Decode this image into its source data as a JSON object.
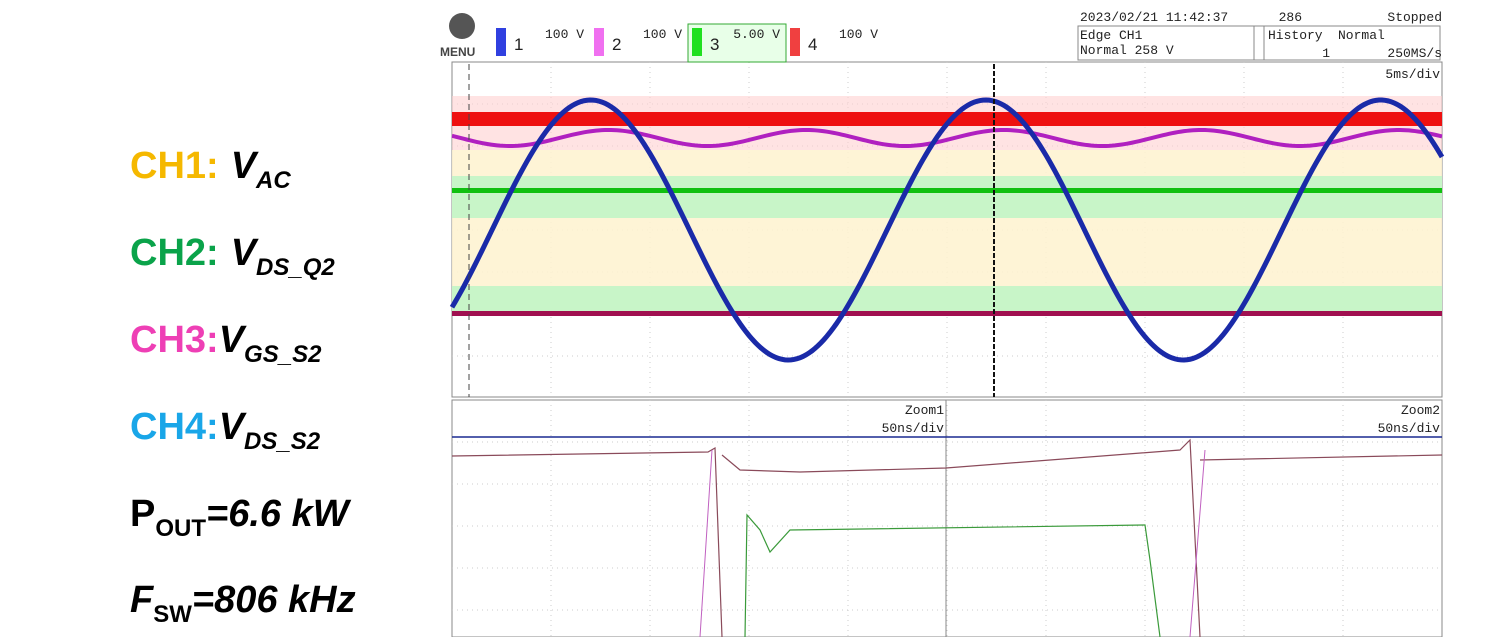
{
  "legend": {
    "items": [
      {
        "channel": "CH1:",
        "symbol": "V",
        "subscript": "AC",
        "color": "#f5b800"
      },
      {
        "channel": "CH2:",
        "symbol": "V",
        "subscript": "DS_Q2",
        "color": "#0aa34a"
      },
      {
        "channel": "CH3:",
        "symbol": "V",
        "subscript": "GS_S2",
        "color": "#ee3fb5"
      },
      {
        "channel": "CH4:",
        "symbol": "V",
        "subscript": "DS_S2",
        "color": "#19a6e8"
      }
    ],
    "power": {
      "symbol": "P",
      "subscript": "OUT",
      "value": "=6.6 kW"
    },
    "frequency": {
      "symbol": "F",
      "subscript": "SW",
      "value": "=806 kHz"
    }
  },
  "scope": {
    "menu": "MENU",
    "channels": [
      {
        "number": "1",
        "scale": "100 V",
        "color": "#3040e0"
      },
      {
        "number": "2",
        "scale": "100 V",
        "color": "#f070f0"
      },
      {
        "number": "3",
        "scale": "5.00 V",
        "color": "#20e020"
      },
      {
        "number": "4",
        "scale": "100 V",
        "color": "#f04040"
      }
    ],
    "timestamp": "2023/02/21 11:42:37",
    "count": "286",
    "status": "Stopped",
    "trigger": {
      "mode": "Edge CH1",
      "level": "Normal 258 V"
    },
    "history": {
      "label": "History",
      "value": "1"
    },
    "acquisition": {
      "mode": "Normal",
      "rate": "250MS/s"
    },
    "timebase": "5ms/div",
    "zooms": [
      {
        "name": "Zoom1",
        "timebase": "50ns/div"
      },
      {
        "name": "Zoom2",
        "timebase": "50ns/div"
      }
    ]
  }
}
